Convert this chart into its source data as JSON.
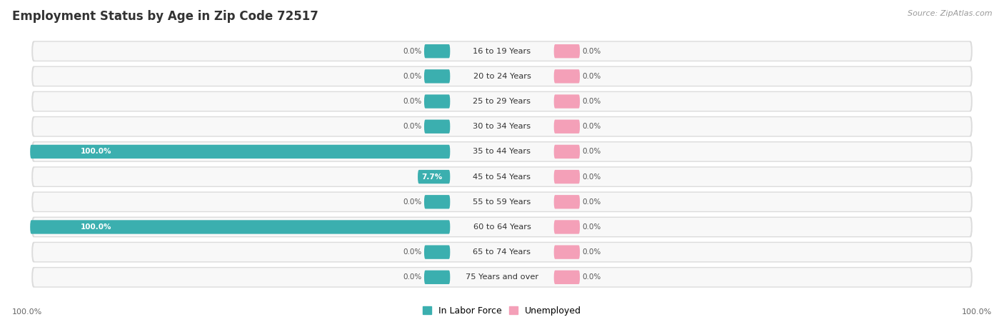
{
  "title": "Employment Status by Age in Zip Code 72517",
  "source": "Source: ZipAtlas.com",
  "categories": [
    "16 to 19 Years",
    "20 to 24 Years",
    "25 to 29 Years",
    "30 to 34 Years",
    "35 to 44 Years",
    "45 to 54 Years",
    "55 to 59 Years",
    "60 to 64 Years",
    "65 to 74 Years",
    "75 Years and over"
  ],
  "in_labor_force": [
    0.0,
    0.0,
    0.0,
    0.0,
    100.0,
    7.7,
    0.0,
    100.0,
    0.0,
    0.0
  ],
  "unemployed": [
    0.0,
    0.0,
    0.0,
    0.0,
    0.0,
    0.0,
    0.0,
    0.0,
    0.0,
    0.0
  ],
  "labor_color": "#3BAFAF",
  "unemployed_color": "#F4A0B8",
  "row_bg_color": "#EBEBEB",
  "row_inner_color": "#F8F8F8",
  "title_fontsize": 12,
  "source_fontsize": 8,
  "axis_label_left": "100.0%",
  "axis_label_right": "100.0%",
  "max_value": 100.0,
  "fig_bg_color": "#FFFFFF"
}
